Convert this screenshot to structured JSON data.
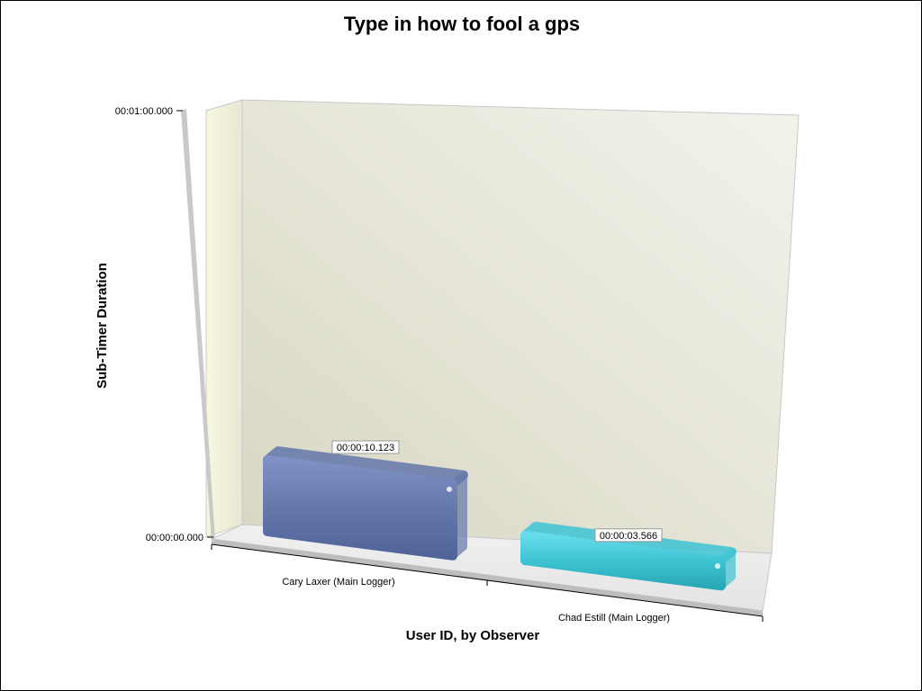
{
  "chart_data": {
    "type": "bar",
    "title": "Type in how to fool a gps",
    "xlabel": "User ID, by Observer",
    "ylabel": "Sub-Timer Duration",
    "categories": [
      "Cary Laxer (Main Logger)",
      "Chad Estill (Main Logger)"
    ],
    "values": [
      10.123,
      3.566
    ],
    "value_labels": [
      "00:00:10.123",
      "00:00:03.566"
    ],
    "ylim": [
      0,
      60
    ],
    "y_tick_values": [
      0,
      60
    ],
    "y_tick_labels": [
      "00:00:00.000",
      "00:01:00.000"
    ],
    "bar_colors": [
      "#6478aa",
      "#3ec4d4"
    ],
    "style": "3d",
    "grid": false,
    "legend": "none"
  }
}
